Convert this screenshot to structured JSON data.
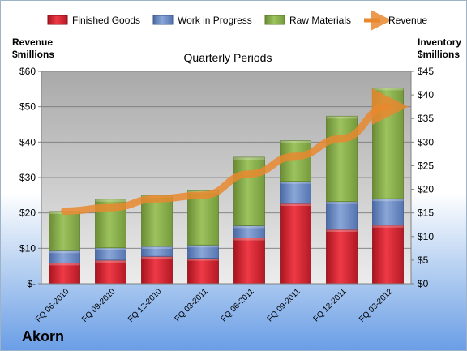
{
  "company": "Akorn",
  "chart_data": {
    "type": "bar",
    "stacked": true,
    "title": "Quarterly Periods",
    "left_axis_label": [
      "Revenue",
      "$millions"
    ],
    "right_axis_label": [
      "Inventory",
      "$millions"
    ],
    "categories": [
      "FQ 06-2010",
      "FQ 09-2010",
      "FQ 12-2010",
      "FQ 03-2011",
      "FQ 06-2011",
      "FQ 09-2011",
      "FQ 12-2011",
      "FQ 03-2012"
    ],
    "left_ylim": [
      0,
      60
    ],
    "right_ylim": [
      0,
      45
    ],
    "left_ticks": [
      "$-",
      "$10",
      "$20",
      "$30",
      "$40",
      "$50",
      "$60"
    ],
    "right_ticks": [
      "$0",
      "$5",
      "$10",
      "$15",
      "$20",
      "$25",
      "$30",
      "$35",
      "$40",
      "$45"
    ],
    "grid": true,
    "legend_position": "top",
    "series": [
      {
        "name": "Finished Goods",
        "kind": "bar",
        "axis": "right",
        "color": "#e8313e",
        "values": [
          4.4,
          5.0,
          5.8,
          5.4,
          9.7,
          17.0,
          11.5,
          12.4
        ]
      },
      {
        "name": "Work in Progress",
        "kind": "bar",
        "axis": "right",
        "color": "#6f8fc8",
        "values": [
          2.6,
          2.6,
          2.1,
          2.8,
          2.6,
          4.7,
          5.9,
          5.6
        ]
      },
      {
        "name": "Raw Materials",
        "kind": "bar",
        "axis": "right",
        "color": "#8db04f",
        "values": [
          8.3,
          10.3,
          10.8,
          11.5,
          14.5,
          8.6,
          18.1,
          23.5
        ]
      },
      {
        "name": "Revenue",
        "kind": "line",
        "axis": "left",
        "color": "#e8882f",
        "values": [
          20.5,
          21.5,
          24.0,
          25.0,
          31.0,
          36.0,
          41.0,
          50.0
        ]
      }
    ]
  }
}
